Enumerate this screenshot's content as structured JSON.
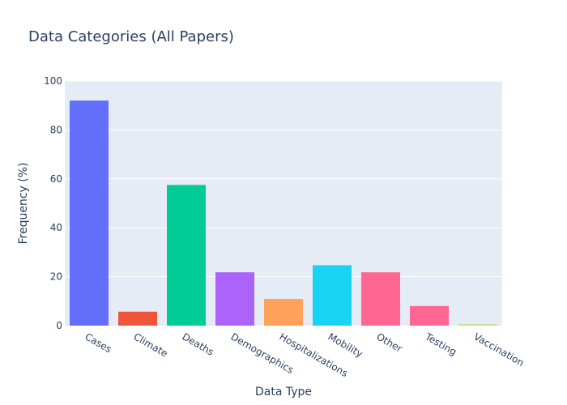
{
  "chart_data": {
    "type": "bar",
    "title": "Data Categories (All Papers)",
    "xlabel": "Data Type",
    "ylabel": "Frequency (%)",
    "categories": [
      "Cases",
      "Climate",
      "Deaths",
      "Demographics",
      "Hospitalizations",
      "Mobility",
      "Other",
      "Testing",
      "Vaccination"
    ],
    "values": [
      92,
      5.7,
      57.5,
      21.8,
      10.9,
      24.7,
      21.8,
      8,
      0.6
    ],
    "colors": [
      "#636efa",
      "#EF553B",
      "#00cc96",
      "#ab63fa",
      "#FFA15A",
      "#19d3f3",
      "#FF6692",
      "#ff6692",
      "#B6E880"
    ],
    "ylim": [
      0,
      100
    ],
    "yticks": [
      0,
      20,
      40,
      60,
      80,
      100
    ],
    "grid": true,
    "legend": "none",
    "plot_background": "#E5ECF6"
  }
}
